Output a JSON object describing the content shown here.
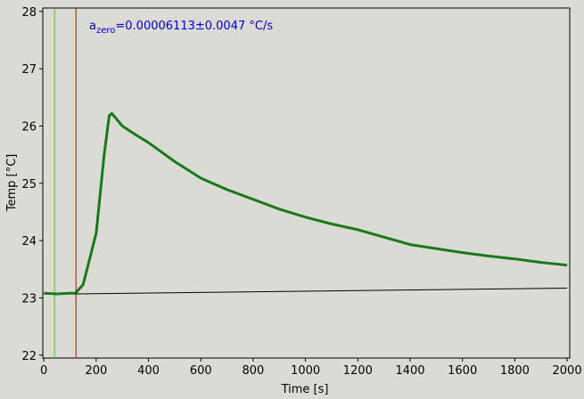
{
  "chart_data": {
    "type": "line",
    "annotation": {
      "base": "a",
      "sub": "zero",
      "rest": "=0.00006113±0.0047 °C/s",
      "color": "#0000cc"
    },
    "xlabel": "Time [s]",
    "ylabel": "Temp [°C]",
    "xlim": [
      -4,
      2010
    ],
    "ylim": [
      21.95,
      28.06
    ],
    "xticks": [
      0,
      200,
      400,
      600,
      800,
      1000,
      1200,
      1400,
      1600,
      1800,
      2000
    ],
    "yticks": [
      22,
      23,
      24,
      25,
      26,
      27,
      28
    ],
    "vlines": [
      {
        "x": 41,
        "color": "#33dd33"
      },
      {
        "x": 123,
        "color": "#dd2222"
      }
    ],
    "series": [
      {
        "color": "#1a7a1a",
        "width": 3,
        "x": [
          0,
          50,
          100,
          120,
          150,
          200,
          230,
          250,
          260,
          300,
          350,
          400,
          500,
          600,
          700,
          800,
          900,
          1000,
          1100,
          1200,
          1300,
          1400,
          1500,
          1600,
          1700,
          1800,
          1900,
          2000
        ],
        "values": [
          23.08,
          23.07,
          23.08,
          23.08,
          23.23,
          24.13,
          25.48,
          26.18,
          26.22,
          26.0,
          25.85,
          25.71,
          25.38,
          25.09,
          24.89,
          24.72,
          24.55,
          24.41,
          24.29,
          24.19,
          24.06,
          23.93,
          23.86,
          23.79,
          23.73,
          23.68,
          23.62,
          23.57
        ]
      },
      {
        "color": "#000000",
        "width": 1,
        "x": [
          120,
          2000
        ],
        "values": [
          23.07,
          23.17
        ]
      }
    ]
  }
}
